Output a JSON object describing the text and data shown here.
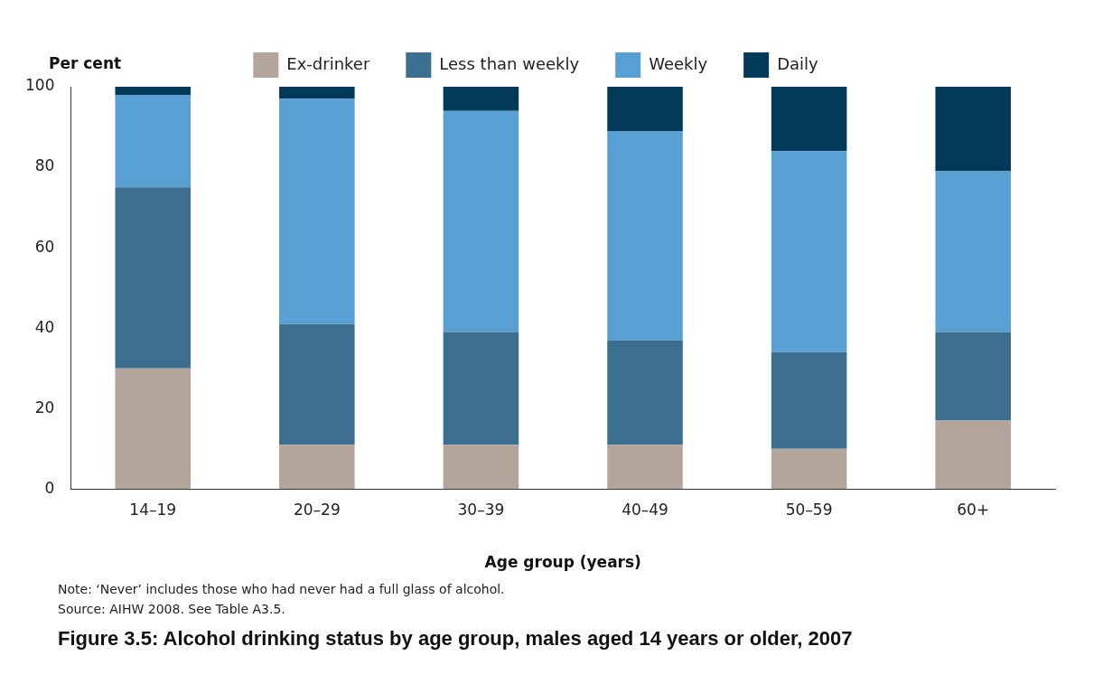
{
  "chart_data": {
    "type": "bar",
    "title": "Figure 3.5: Alcohol drinking status by age group, males aged 14 years or older, 2007",
    "xlabel": "Age group (years)",
    "ylabel": "Per cent",
    "categories": [
      "14–19",
      "20–29",
      "30–39",
      "40–49",
      "50–59",
      "60+"
    ],
    "series": [
      {
        "name": "Ex-drinker",
        "color": "#b3a59c",
        "values": [
          30,
          11,
          11,
          11,
          10,
          17
        ]
      },
      {
        "name": "Less than weekly",
        "color": "#3c6e8f",
        "values": [
          45,
          30,
          28,
          26,
          24,
          22
        ]
      },
      {
        "name": "Weekly",
        "color": "#58a0d4",
        "values": [
          23,
          56,
          55,
          52,
          50,
          40
        ]
      },
      {
        "name": "Daily",
        "color": "#023858",
        "values": [
          2,
          3,
          6,
          11,
          16,
          21
        ]
      }
    ],
    "stacked": true,
    "ylim": [
      0,
      100
    ],
    "yticks": [
      0,
      20,
      40,
      60,
      80,
      100
    ],
    "grid": false,
    "legend": "top",
    "annotations": [
      "Note: ‘Never’ includes those who had never had a full glass of alcohol.",
      "Source: AIHW 2008. See Table A3.5."
    ]
  }
}
